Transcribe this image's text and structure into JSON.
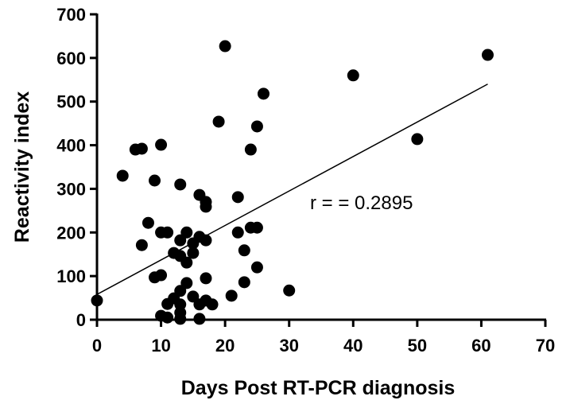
{
  "chart_data": {
    "type": "scatter",
    "x_label": "Days Post RT-PCR diagnosis",
    "y_label": "Reactivity index",
    "annotation": "r = = 0.2895",
    "color": "#000000",
    "x": [
      0,
      4,
      6,
      7,
      7,
      8,
      9,
      9,
      10,
      10,
      10,
      11,
      10,
      11,
      11,
      12,
      12,
      13,
      13,
      13,
      13,
      13,
      13,
      13,
      14,
      14,
      14,
      15,
      15,
      15,
      16,
      16,
      16,
      16,
      17,
      17,
      17,
      17,
      17,
      18,
      19,
      20,
      21,
      22,
      22,
      23,
      23,
      24,
      24,
      25,
      25,
      25,
      26,
      30,
      40,
      50,
      61
    ],
    "values": [
      44,
      330,
      390,
      392,
      171,
      222,
      319,
      97,
      401,
      200,
      102,
      200,
      9,
      36,
      5,
      153,
      49,
      310,
      182,
      146,
      66,
      35,
      16,
      2,
      200,
      131,
      84,
      175,
      153,
      53,
      286,
      190,
      35,
      2,
      270,
      259,
      182,
      95,
      44,
      35,
      454,
      627,
      55,
      281,
      200,
      159,
      86,
      390,
      211,
      443,
      211,
      120,
      518,
      67,
      560,
      414,
      607
    ],
    "fit_line": {
      "x": [
        0,
        61
      ],
      "y": [
        58,
        540
      ]
    },
    "xlim": [
      0,
      70
    ],
    "xticks": [
      0,
      10,
      20,
      30,
      40,
      50,
      60,
      70
    ],
    "ylim": [
      0,
      700
    ],
    "yticks": [
      0,
      100,
      200,
      300,
      400,
      500,
      600,
      700
    ]
  }
}
